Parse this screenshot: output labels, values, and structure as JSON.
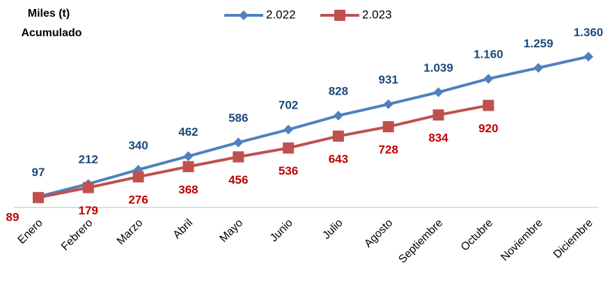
{
  "chart_data": {
    "type": "line",
    "yaxis_label": [
      "Miles (t)",
      "Acumulado"
    ],
    "categories": [
      "Enero",
      "Febrero",
      "Marzo",
      "Abril",
      "Mayo",
      "Junio",
      "Julio",
      "Agosto",
      "Septiembre",
      "Octubre",
      "Noviembre",
      "Diciembre"
    ],
    "series": [
      {
        "name": "2.022",
        "color": "#4f81bd",
        "label_color": "#1f497d",
        "marker": "diamond",
        "values": [
          97,
          212,
          340,
          462,
          586,
          702,
          828,
          931,
          1039,
          1160,
          1259,
          1360
        ],
        "value_labels": [
          "97",
          "212",
          "340",
          "462",
          "586",
          "702",
          "828",
          "931",
          "1.039",
          "1.160",
          "1.259",
          "1.360"
        ]
      },
      {
        "name": "2.023",
        "color": "#c0504d",
        "label_color": "#c00000",
        "marker": "square",
        "values": [
          89,
          179,
          276,
          368,
          456,
          536,
          643,
          728,
          834,
          920,
          null,
          null
        ],
        "value_labels": [
          "89",
          "179",
          "276",
          "368",
          "456",
          "536",
          "643",
          "728",
          "834",
          "920",
          null,
          null
        ]
      }
    ],
    "ylim": [
      0,
      1400
    ],
    "legend": "top"
  }
}
